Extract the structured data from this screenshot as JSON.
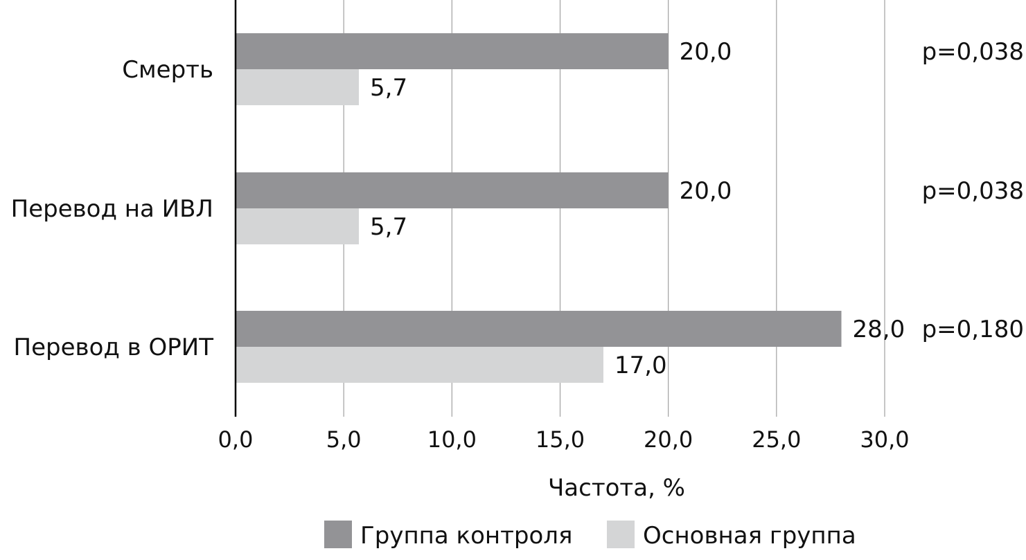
{
  "chart_data": {
    "type": "bar",
    "orientation": "horizontal",
    "categories": [
      "Смерть",
      "Перевод на ИВЛ",
      "Перевод в ОРИТ"
    ],
    "series": [
      {
        "name": "Группа контроля",
        "values": [
          20.0,
          20.0,
          28.0
        ],
        "labels": [
          "20,0",
          "20,0",
          "28,0"
        ],
        "color": "#939396"
      },
      {
        "name": "Основная группа",
        "values": [
          5.7,
          5.7,
          17.0
        ],
        "labels": [
          "5,7",
          "5,7",
          "17,0"
        ],
        "color": "#d4d5d6"
      }
    ],
    "p_values": [
      "p=0,038",
      "p=0,038",
      "p=0,180"
    ],
    "xlabel": "Частота, %",
    "ylabel": "",
    "xlim": [
      0,
      30
    ],
    "xticks": [
      0,
      5,
      10,
      15,
      20,
      25,
      30
    ],
    "xtick_labels": [
      "0,0",
      "5,0",
      "10,0",
      "15,0",
      "20,0",
      "25,0",
      "30,0"
    ],
    "grid": "vertical",
    "legend_position": "bottom"
  }
}
